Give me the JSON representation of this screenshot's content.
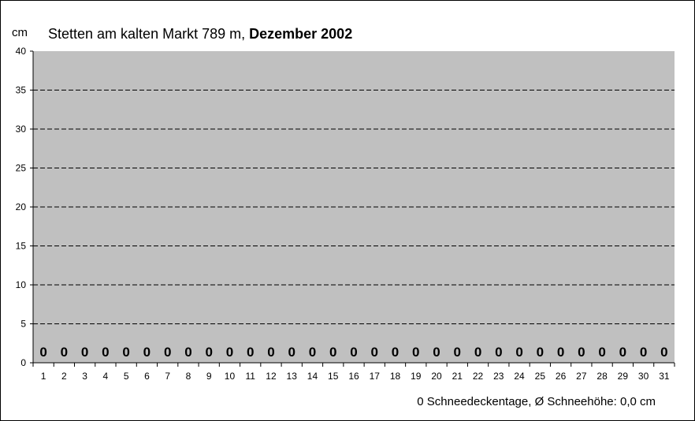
{
  "chart_data": {
    "type": "bar",
    "title_prefix": "Stetten am kalten Markt 789 m, ",
    "title_bold": "Dezember 2002",
    "y_unit": "cm",
    "ylim": [
      0,
      40
    ],
    "y_ticks": [
      0,
      5,
      10,
      15,
      20,
      25,
      30,
      35,
      40
    ],
    "grid": true,
    "categories": [
      "1",
      "2",
      "3",
      "4",
      "5",
      "6",
      "7",
      "8",
      "9",
      "10",
      "11",
      "12",
      "13",
      "14",
      "15",
      "16",
      "17",
      "18",
      "19",
      "20",
      "21",
      "22",
      "23",
      "24",
      "25",
      "26",
      "27",
      "28",
      "29",
      "30",
      "31"
    ],
    "values": [
      0,
      0,
      0,
      0,
      0,
      0,
      0,
      0,
      0,
      0,
      0,
      0,
      0,
      0,
      0,
      0,
      0,
      0,
      0,
      0,
      0,
      0,
      0,
      0,
      0,
      0,
      0,
      0,
      0,
      0,
      0
    ],
    "data_labels": [
      "0",
      "0",
      "0",
      "0",
      "0",
      "0",
      "0",
      "0",
      "0",
      "0",
      "0",
      "0",
      "0",
      "0",
      "0",
      "0",
      "0",
      "0",
      "0",
      "0",
      "0",
      "0",
      "0",
      "0",
      "0",
      "0",
      "0",
      "0",
      "0",
      "0",
      "0"
    ],
    "footer": "0 Schneedeckentage, Ø Schneehöhe:  0,0 cm",
    "colors": {
      "plot_background": "#c0c0c0",
      "gridline": "#000000",
      "bar": "#ffffff"
    }
  }
}
